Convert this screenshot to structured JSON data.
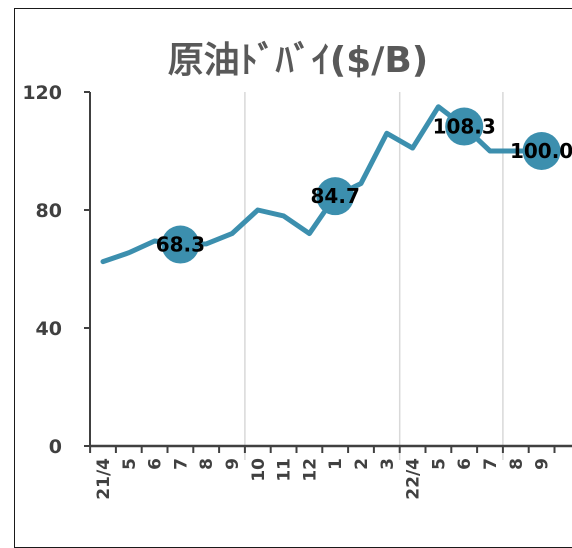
{
  "chart_data": {
    "type": "line",
    "title": "原油ﾄﾞﾊﾞｲ($/B)",
    "xlabel": "",
    "ylabel": "",
    "x": [
      "21/4",
      "5",
      "6",
      "7",
      "8",
      "9",
      "10",
      "11",
      "12",
      "1",
      "2",
      "3",
      "22/4",
      "5",
      "6",
      "7",
      "8",
      "9"
    ],
    "series": [
      {
        "values": [
          62.5,
          65.5,
          69.5,
          68.3,
          68.5,
          72,
          80,
          78,
          72,
          84.7,
          89,
          106,
          101,
          115,
          108.3,
          100,
          100,
          100.0
        ],
        "color": "#3c8fae"
      }
    ],
    "markers": [
      {
        "index": 3,
        "label": "68.3"
      },
      {
        "index": 9,
        "label": "84.7"
      },
      {
        "index": 14,
        "label": "108.3"
      },
      {
        "index": 17,
        "label": "100.0"
      }
    ],
    "ylim": [
      0,
      120
    ],
    "yticks": [
      "0",
      "40",
      "80",
      "120"
    ],
    "grid": "vertical-dividers",
    "legend": "none",
    "colors": {
      "line": "#3c8fae",
      "marker": "#3c8fae",
      "axis": "#404040",
      "gridline": "#d9d9d9"
    }
  }
}
